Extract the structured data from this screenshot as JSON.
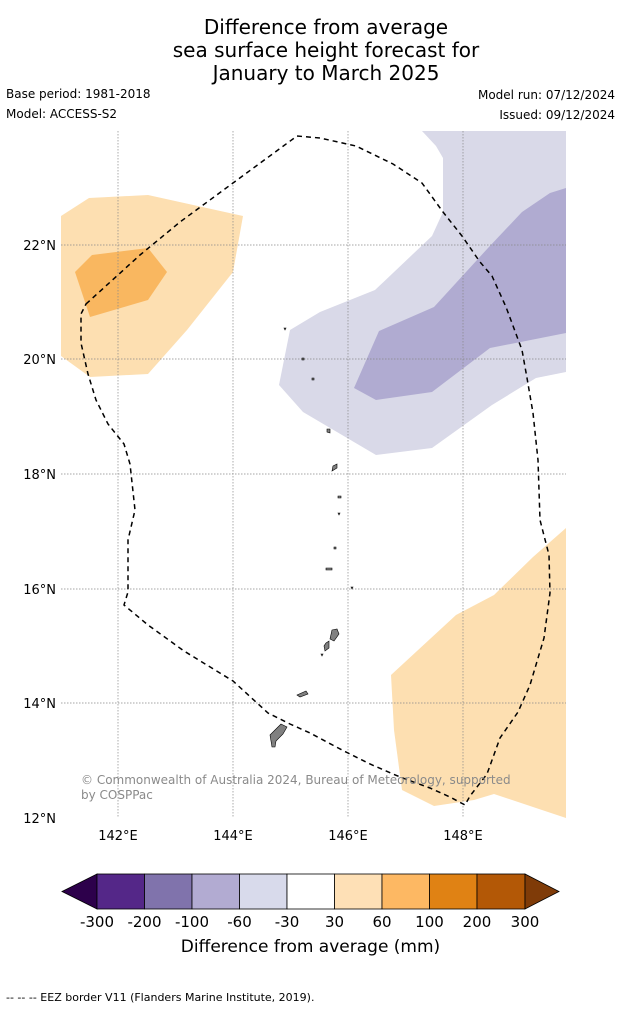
{
  "title": {
    "line1": "Difference from average",
    "line2": "sea surface height forecast for",
    "line3": "January to March 2025"
  },
  "meta": {
    "base_period": "Base period: 1981-2018",
    "model": "Model: ACCESS-S2",
    "model_run": "Model run: 07/12/2024",
    "issued": "Issued: 09/12/2024"
  },
  "map": {
    "latitude_labels": [
      "22°N",
      "20°N",
      "18°N",
      "16°N",
      "14°N",
      "12°N"
    ],
    "longitude_labels": [
      "142°E",
      "144°E",
      "146°E",
      "148°E"
    ],
    "credit": "© Commonwealth of Australia 2024, Bureau of Meteorology, supported by COSPPac",
    "colors": {
      "neg_30_60": "#d9d9e8",
      "neg_60_100": "#b0abd1",
      "pos_30_60": "#fddfb1",
      "pos_60_100": "#f9b760",
      "land": "#808080",
      "grid": "#888888",
      "eez": "#000000"
    }
  },
  "colorbar": {
    "tick_labels": [
      "-300",
      "-200",
      "-100",
      "-60",
      "-30",
      "30",
      "60",
      "100",
      "200",
      "300"
    ],
    "colors": [
      "#2d004b",
      "#542788",
      "#8073ac",
      "#b2abd2",
      "#d8daeb",
      "#ffffff",
      "#fee0b6",
      "#fdb863",
      "#e08214",
      "#b35806",
      "#7f3b08"
    ],
    "label": "Difference from average (mm)"
  },
  "footnote": "--  --  -- EEZ border V11 (Flanders Marine Institute, 2019)."
}
